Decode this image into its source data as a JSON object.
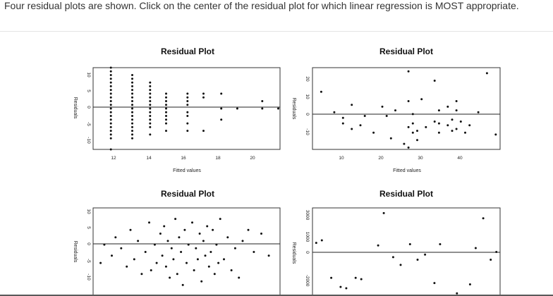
{
  "question": {
    "prompt": "Four residual plots are shown. Click on the center of the residual plot for which linear regression is MOST appropriate."
  },
  "plots": [
    {
      "title": "Residual Plot",
      "xlabel": "Fitted values",
      "ylabel": "Residuals",
      "xticks": [
        "12",
        "14",
        "16",
        "18",
        "20"
      ],
      "yticks": [
        "10",
        "5",
        "0",
        "-5",
        "-10"
      ]
    },
    {
      "title": "Residual Plot",
      "xlabel": "Fitted values",
      "ylabel": "Residuals",
      "xticks": [
        "10",
        "20",
        "30",
        "40"
      ],
      "yticks": [
        "20",
        "10",
        "0",
        "-10"
      ]
    },
    {
      "title": "Residual Plot",
      "xlabel": "",
      "ylabel": "Residuals",
      "xticks": [],
      "yticks": [
        "10",
        "5",
        "0",
        "-5",
        "-10"
      ]
    },
    {
      "title": "Residual Plot",
      "xlabel": "",
      "ylabel": "Residuals",
      "xticks": [],
      "yticks": [
        "3000",
        "1000",
        "0",
        "-2000"
      ]
    }
  ],
  "chart_data": [
    {
      "type": "scatter",
      "title": "Residual Plot",
      "xlabel": "Fitted values",
      "ylabel": "Residuals",
      "xlim": [
        10.5,
        21
      ],
      "ylim": [
        -11,
        11
      ],
      "reference_line_y": 0,
      "series": [
        {
          "x": [
            11.5,
            11.5,
            11.5,
            11.5,
            11.5,
            11.5,
            11.5,
            11.5,
            11.5,
            11.5,
            11.5,
            11.5,
            11.5,
            11.5,
            11.5,
            11.5,
            11.5,
            11.5,
            11.5,
            11.5,
            11.5,
            12.7,
            12.7,
            12.7,
            12.7,
            12.7,
            12.7,
            12.7,
            12.7,
            12.7,
            12.7,
            12.7,
            12.7,
            12.7,
            12.7,
            12.7,
            12.7,
            12.7,
            12.7,
            13.7,
            13.7,
            13.7,
            13.7,
            13.7,
            13.7,
            13.7,
            13.7,
            13.7,
            13.7,
            13.7,
            13.7,
            13.7,
            13.7,
            14.6,
            14.6,
            14.6,
            14.6,
            14.6,
            14.6,
            14.6,
            14.6,
            14.6,
            14.6,
            15.8,
            15.8,
            15.8,
            15.8,
            15.8,
            15.8,
            15.8,
            15.8,
            16.7,
            16.7,
            16.7,
            17.7,
            17.7,
            17.7,
            18.6,
            20.0,
            20.0,
            20.9
          ],
          "y": [
            11,
            10,
            9,
            8,
            7,
            6,
            5,
            4,
            3,
            2,
            1,
            0,
            -1,
            -2,
            -3,
            -4,
            -5,
            -6,
            -7,
            -8,
            -11,
            9,
            8,
            7,
            6,
            5,
            4,
            3,
            2,
            1,
            0,
            -1,
            -2,
            -3,
            -4,
            -5,
            -6,
            -7,
            -8,
            7,
            6,
            5,
            4,
            3,
            2,
            1,
            0,
            -1,
            -2,
            -3,
            -4,
            -5,
            -7,
            4,
            3,
            2,
            1,
            0,
            -1,
            -2,
            -3,
            -4,
            -6,
            4,
            3,
            2,
            1,
            -1,
            -2,
            -4,
            -6,
            4,
            3,
            -6,
            4,
            0,
            -3,
            0,
            2,
            0,
            0
          ]
        }
      ]
    },
    {
      "type": "scatter",
      "title": "Residual Plot",
      "xlabel": "Fitted values",
      "ylabel": "Residuals",
      "xlim": [
        4,
        47
      ],
      "ylim": [
        -17,
        27
      ],
      "reference_line_y": 0,
      "series": [
        {
          "x": [
            6,
            9,
            11,
            11,
            13,
            13,
            15,
            16,
            18,
            20,
            21,
            22,
            23,
            25,
            26,
            26,
            26,
            26,
            27,
            27,
            27,
            28,
            28,
            29,
            30,
            32,
            32,
            33,
            33,
            33,
            35,
            35,
            36,
            36,
            37,
            37,
            37,
            38,
            39,
            40,
            42,
            44,
            46
          ],
          "y": [
            14,
            3,
            0,
            -3,
            -6,
            7,
            -4,
            1,
            -8,
            6,
            1,
            -11,
            4,
            -14,
            9,
            -16,
            -5,
            25,
            -3,
            2,
            -8,
            -7,
            -12,
            10,
            -5,
            -2,
            20,
            4,
            -8,
            -3,
            -4,
            6,
            -7,
            -1,
            4,
            9,
            -6,
            -2,
            -8,
            -4,
            3,
            24,
            -9
          ]
        }
      ]
    },
    {
      "type": "scatter",
      "title": "Residual Plot",
      "xlabel": "",
      "ylabel": "Residuals",
      "xlim": [
        0,
        10
      ],
      "ylim": [
        -12,
        12
      ],
      "reference_line_y": 0,
      "series": [
        {
          "x": [
            0.4,
            0.6,
            1.0,
            1.2,
            1.5,
            1.8,
            2.0,
            2.2,
            2.4,
            2.6,
            2.8,
            3.0,
            3.1,
            3.3,
            3.4,
            3.6,
            3.7,
            3.8,
            3.9,
            4.0,
            4.1,
            4.2,
            4.3,
            4.4,
            4.5,
            4.6,
            4.7,
            4.8,
            4.9,
            5.0,
            5.1,
            5.2,
            5.3,
            5.4,
            5.5,
            5.6,
            5.7,
            5.8,
            5.9,
            6.0,
            6.1,
            6.2,
            6.3,
            6.4,
            6.5,
            6.6,
            6.7,
            6.8,
            7.0,
            7.2,
            7.4,
            7.6,
            7.8,
            8.0,
            8.3,
            8.6,
            9.0,
            9.4
          ],
          "y": [
            -3,
            2,
            -1,
            4,
            1,
            -4,
            6,
            -2,
            3,
            -6,
            0,
            8,
            -5,
            2,
            -3,
            5,
            -1,
            7,
            -4,
            3,
            -7,
            1,
            -2,
            9,
            -6,
            4,
            0,
            -9,
            6,
            -3,
            2,
            -12,
            8,
            -5,
            1,
            -2,
            5,
            -8,
            3,
            -1,
            7,
            -4,
            0,
            6,
            -6,
            2,
            -3,
            9,
            -2,
            4,
            -5,
            1,
            -7,
            3,
            6,
            0,
            5,
            -1
          ]
        }
      ]
    },
    {
      "type": "scatter",
      "title": "Residual Plot",
      "xlabel": "",
      "ylabel": "Residuals",
      "xlim": [
        0,
        10
      ],
      "ylim": [
        -2600,
        4200
      ],
      "reference_line_y": 0,
      "series": [
        {
          "x": [
            0.2,
            0.5,
            1.0,
            1.5,
            1.8,
            2.3,
            2.6,
            3.5,
            3.8,
            4.3,
            4.7,
            5.2,
            5.6,
            6.0,
            6.5,
            6.8,
            7.7,
            8.0,
            8.4,
            8.7,
            9.1,
            9.5,
            9.8
          ],
          "y": [
            1500,
            1700,
            -1200,
            -1900,
            -2000,
            -1200,
            -1300,
            1300,
            3800,
            400,
            -200,
            1400,
            200,
            600,
            -1600,
            1400,
            -2400,
            -2600,
            -1700,
            1100,
            3400,
            200,
            800
          ]
        }
      ]
    }
  ]
}
